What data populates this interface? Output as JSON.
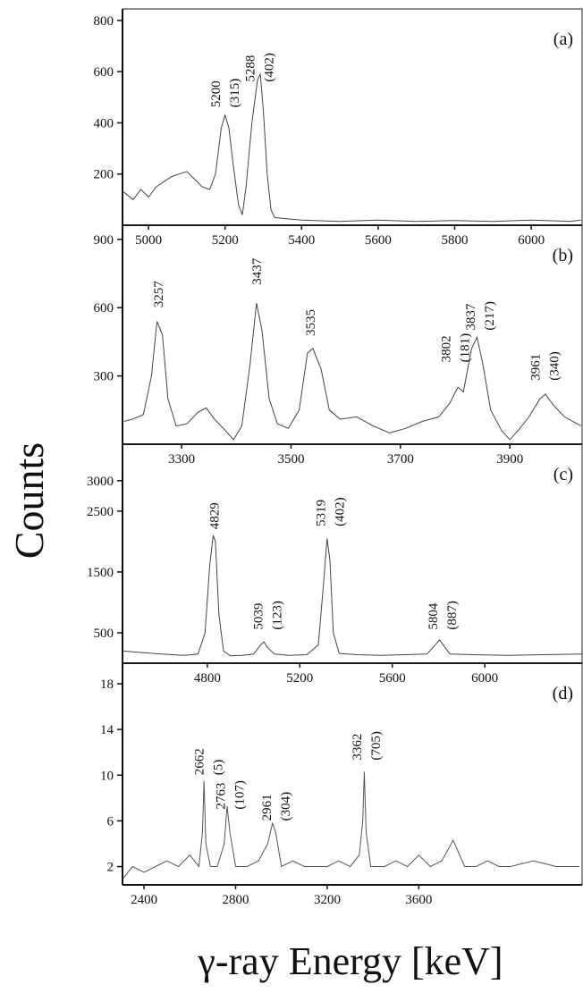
{
  "shared_axes": {
    "ylabel": "Counts",
    "xlabel": "γ-ray Energy [keV]"
  },
  "chart_data": [
    {
      "type": "line",
      "label": "(a)",
      "color": "#444",
      "x": [
        4935,
        4960,
        4980,
        5000,
        5020,
        5040,
        5060,
        5080,
        5100,
        5120,
        5140,
        5160,
        5175,
        5190,
        5200,
        5210,
        5220,
        5235,
        5245,
        5255,
        5270,
        5285,
        5292,
        5300,
        5310,
        5320,
        5330,
        5360,
        5400,
        5500,
        5600,
        5700,
        5800,
        5900,
        6000,
        6100,
        6130
      ],
      "values": [
        130,
        100,
        140,
        110,
        150,
        170,
        190,
        200,
        210,
        180,
        150,
        140,
        200,
        380,
        430,
        380,
        250,
        80,
        40,
        150,
        400,
        570,
        590,
        450,
        200,
        60,
        30,
        25,
        20,
        15,
        20,
        15,
        18,
        15,
        20,
        15,
        20
      ],
      "xlim": [
        4932,
        6133
      ],
      "xticks": [
        5000,
        5200,
        5400,
        5600,
        5800,
        6000
      ],
      "ylim": [
        0,
        845
      ],
      "yticks": [
        200,
        400,
        600,
        800
      ],
      "annotations": [
        {
          "lines": [
            "5200",
            "(315)"
          ],
          "x": 5200,
          "y": 460
        },
        {
          "lines": [
            "5288",
            "(402)"
          ],
          "x": 5290,
          "y": 560
        }
      ]
    },
    {
      "type": "line",
      "label": "(b)",
      "color": "#444",
      "x": [
        3195,
        3210,
        3230,
        3245,
        3255,
        3265,
        3275,
        3290,
        3310,
        3330,
        3345,
        3360,
        3380,
        3395,
        3410,
        3425,
        3437,
        3447,
        3460,
        3475,
        3495,
        3515,
        3530,
        3540,
        3555,
        3570,
        3590,
        3620,
        3650,
        3680,
        3710,
        3740,
        3770,
        3790,
        3805,
        3815,
        3830,
        3840,
        3850,
        3865,
        3885,
        3900,
        3915,
        3935,
        3955,
        3965,
        3980,
        4000,
        4030
      ],
      "values": [
        100,
        110,
        130,
        300,
        540,
        480,
        200,
        80,
        90,
        140,
        160,
        110,
        60,
        20,
        80,
        350,
        620,
        500,
        200,
        90,
        70,
        150,
        400,
        420,
        330,
        150,
        110,
        120,
        80,
        50,
        70,
        100,
        120,
        180,
        250,
        230,
        420,
        470,
        360,
        150,
        60,
        20,
        60,
        120,
        200,
        220,
        170,
        120,
        80
      ],
      "xlim": [
        3192,
        4032
      ],
      "xticks": [
        3300,
        3500,
        3700,
        3900
      ],
      "ylim": [
        0,
        962
      ],
      "yticks": [
        300,
        600,
        900
      ],
      "annotations": [
        {
          "lines": [
            "3257"
          ],
          "x": 3257,
          "y": 600
        },
        {
          "lines": [
            "3437"
          ],
          "x": 3437,
          "y": 700
        },
        {
          "lines": [
            "3535"
          ],
          "x": 3535,
          "y": 475
        },
        {
          "lines": [
            "3802",
            "(181)"
          ],
          "x": 3800,
          "y": 360
        },
        {
          "lines": [
            "3837",
            "(217)"
          ],
          "x": 3845,
          "y": 500
        },
        {
          "lines": [
            "3961",
            "(340)"
          ],
          "x": 3963,
          "y": 280
        }
      ]
    },
    {
      "type": "line",
      "label": "(c)",
      "color": "#444",
      "x": [
        4435,
        4500,
        4600,
        4700,
        4760,
        4790,
        4810,
        4825,
        4835,
        4850,
        4870,
        4900,
        4950,
        5000,
        5030,
        5045,
        5060,
        5090,
        5150,
        5230,
        5280,
        5300,
        5318,
        5330,
        5345,
        5370,
        5450,
        5550,
        5650,
        5750,
        5790,
        5805,
        5820,
        5850,
        5950,
        6100,
        6250,
        6420
      ],
      "values": [
        200,
        180,
        150,
        130,
        150,
        500,
        1600,
        2100,
        2000,
        800,
        200,
        120,
        130,
        150,
        300,
        350,
        260,
        150,
        130,
        140,
        300,
        1200,
        2050,
        1700,
        500,
        160,
        140,
        130,
        140,
        150,
        320,
        380,
        300,
        150,
        140,
        130,
        140,
        150
      ],
      "xlim": [
        4433,
        6421
      ],
      "xticks": [
        4800,
        5200,
        5600,
        6000
      ],
      "ylim": [
        0,
        3600
      ],
      "yticks": [
        500,
        1500,
        2500,
        3000
      ],
      "annotations": [
        {
          "lines": [
            "4829"
          ],
          "x": 4829,
          "y": 2200
        },
        {
          "lines": [
            "5039",
            "(123)"
          ],
          "x": 5060,
          "y": 550
        },
        {
          "lines": [
            "5319",
            "(402)"
          ],
          "x": 5330,
          "y": 2250
        },
        {
          "lines": [
            "5804",
            "(887)"
          ],
          "x": 5815,
          "y": 550
        }
      ]
    },
    {
      "type": "line",
      "label": "(d)",
      "color": "#555",
      "x": [
        2310,
        2350,
        2400,
        2450,
        2500,
        2550,
        2600,
        2640,
        2655,
        2662,
        2670,
        2690,
        2720,
        2750,
        2763,
        2775,
        2800,
        2850,
        2900,
        2940,
        2961,
        2975,
        3000,
        3050,
        3100,
        3150,
        3200,
        3250,
        3300,
        3340,
        3355,
        3362,
        3370,
        3390,
        3450,
        3500,
        3550,
        3600,
        3650,
        3700,
        3750,
        3800,
        3850,
        3900,
        3950,
        4000,
        4100,
        4200,
        4300
      ],
      "values": [
        1,
        2,
        1.5,
        2,
        2.5,
        2,
        3,
        2,
        5,
        9.5,
        4,
        2,
        2,
        4,
        7.3,
        5,
        2,
        2,
        2.5,
        4,
        5.8,
        5,
        2,
        2.5,
        2,
        2,
        2,
        2.5,
        2,
        3,
        6,
        10.3,
        5,
        2,
        2,
        2.5,
        2,
        3,
        2,
        2.5,
        4.3,
        2,
        2,
        2.5,
        2,
        2,
        2.5,
        2,
        2
      ],
      "xlim": [
        2306,
        4313
      ],
      "xticks": [
        2400,
        2800,
        3200,
        3600
      ],
      "ylim": [
        0.4,
        19.8
      ],
      "yticks": [
        2,
        6,
        10,
        14,
        18
      ],
      "annotations": [
        {
          "lines": [
            "2662",
            "(5)"
          ],
          "x": 2680,
          "y": 10
        },
        {
          "lines": [
            "2763",
            "(107)"
          ],
          "x": 2775,
          "y": 7
        },
        {
          "lines": [
            "2961",
            "(304)"
          ],
          "x": 2975,
          "y": 6
        },
        {
          "lines": [
            "3362",
            "(705)"
          ],
          "x": 3370,
          "y": 11.3
        }
      ]
    }
  ]
}
